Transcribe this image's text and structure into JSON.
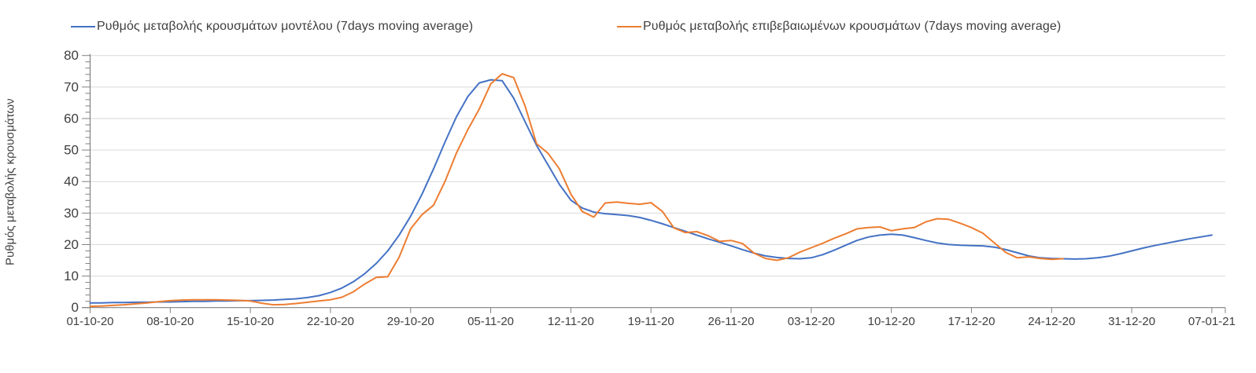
{
  "legend": [
    {
      "label": "Ρυθμός μεταβολής κρουσμάτων μοντέλου (7days moving average)",
      "color": "#4472C4"
    },
    {
      "label": "Ρυθμός μεταβολής επιβεβαιωμένων κρουσμάτων (7days moving average)",
      "color": "#ED7D31"
    }
  ],
  "colors": {
    "series_model": "#4472C4",
    "series_confirmed": "#ED7D31",
    "gridline": "#D9D9D9",
    "axis": "#808080",
    "label_text": "#404040"
  },
  "chart_data": {
    "type": "line",
    "title": "",
    "xlabel": "",
    "ylabel": "Ρυθμός μεταβολής κρουσμάτων",
    "ylim": [
      0,
      80
    ],
    "y_tick_step": 10,
    "y_minor_tick_step": 2,
    "grid": "horizontal",
    "legend_position": "top",
    "x_tick_labels": [
      "01-10-20",
      "08-10-20",
      "15-10-20",
      "22-10-20",
      "29-10-20",
      "05-11-20",
      "12-11-20",
      "19-11-20",
      "26-11-20",
      "03-12-20",
      "10-12-20",
      "17-12-20",
      "24-12-20",
      "31-12-20",
      "07-01-21"
    ],
    "x_days_per_tick": 7,
    "series": [
      {
        "name": "Ρυθμός μεταβολής κρουσμάτων μοντέλου (7days moving average)",
        "color": "#4472C4",
        "start_day": 0,
        "values": [
          1.5,
          1.5,
          1.6,
          1.6,
          1.7,
          1.7,
          1.8,
          1.8,
          1.9,
          2.0,
          2.0,
          2.1,
          2.1,
          2.2,
          2.2,
          2.3,
          2.4,
          2.6,
          2.8,
          3.2,
          3.8,
          4.8,
          6.2,
          8.2,
          10.8,
          14.0,
          18.0,
          23.0,
          29.0,
          36.0,
          44.0,
          52.5,
          60.5,
          67.0,
          71.3,
          72.3,
          72.0,
          66.5,
          59.0,
          51.5,
          45.3,
          39.1,
          34.1,
          31.6,
          30.3,
          29.8,
          29.5,
          29.2,
          28.6,
          27.7,
          26.6,
          25.4,
          24.2,
          23.0,
          21.8,
          20.7,
          19.6,
          18.4,
          17.3,
          16.4,
          15.9,
          15.6,
          15.5,
          15.8,
          16.8,
          18.2,
          19.8,
          21.3,
          22.4,
          23.0,
          23.3,
          23.0,
          22.2,
          21.3,
          20.5,
          20.0,
          19.8,
          19.7,
          19.6,
          19.2,
          18.4,
          17.4,
          16.4,
          15.8,
          15.6,
          15.5,
          15.4,
          15.5,
          15.8,
          16.3,
          17.1,
          18.0,
          18.9,
          19.7,
          20.4,
          21.1,
          21.8,
          22.4,
          23.0
        ]
      },
      {
        "name": "Ρυθμός μεταβολής επιβεβαιωμένων κρουσμάτων (7days moving average)",
        "color": "#ED7D31",
        "start_day": 0,
        "values": [
          0.4,
          0.5,
          0.7,
          0.9,
          1.2,
          1.5,
          1.9,
          2.2,
          2.4,
          2.5,
          2.5,
          2.5,
          2.4,
          2.3,
          2.1,
          1.4,
          0.9,
          1.0,
          1.3,
          1.7,
          2.1,
          2.5,
          3.3,
          5.0,
          7.5,
          9.6,
          9.8,
          16.0,
          25.0,
          29.5,
          32.5,
          40.0,
          49.0,
          56.5,
          63.0,
          71.0,
          74.2,
          73.0,
          64.0,
          52.0,
          49.0,
          44.0,
          36.0,
          30.5,
          28.7,
          33.2,
          33.5,
          33.1,
          32.8,
          33.3,
          30.5,
          25.3,
          23.8,
          24.1,
          22.8,
          21.0,
          21.3,
          20.3,
          17.3,
          15.6,
          15.0,
          15.8,
          17.6,
          19.0,
          20.4,
          22.0,
          23.4,
          25.0,
          25.4,
          25.6,
          24.4,
          25.0,
          25.4,
          27.2,
          28.2,
          28.0,
          26.8,
          25.4,
          23.6,
          20.5,
          17.5,
          15.8,
          16.1,
          15.6,
          15.3,
          15.5
        ]
      }
    ]
  }
}
